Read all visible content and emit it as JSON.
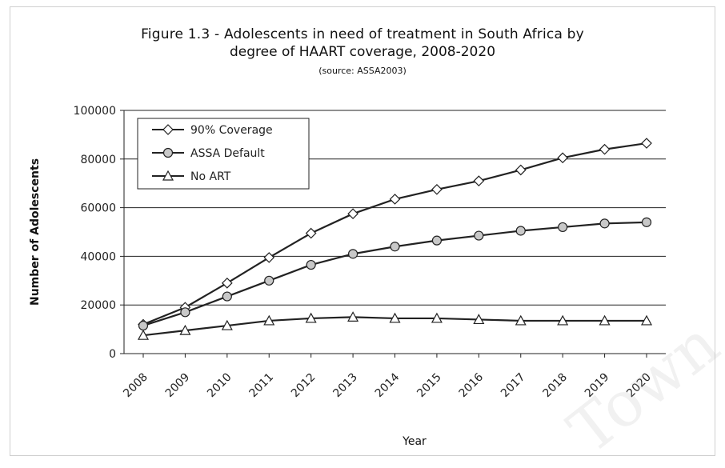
{
  "chart_data": {
    "type": "line",
    "title": "Figure 1.3 - Adolescents in need of treatment in South Africa by",
    "title_line2": "degree of HAART coverage, 2008-2020",
    "subtitle": "(source: ASSA2003)",
    "xlabel": "Year",
    "ylabel": "Number of Adolescents",
    "x": [
      "2008",
      "2009",
      "2010",
      "2011",
      "2012",
      "2013",
      "2014",
      "2015",
      "2016",
      "2017",
      "2018",
      "2019",
      "2020"
    ],
    "ylim": [
      0,
      100000
    ],
    "yticks": [
      0,
      20000,
      40000,
      60000,
      80000,
      100000
    ],
    "ytick_labels": [
      "0",
      "20000",
      "40000",
      "60000",
      "80000",
      "100000"
    ],
    "grid": true,
    "legend_position": "top-left",
    "series": [
      {
        "name": "90% Coverage",
        "marker": "diamond",
        "values": [
          12000,
          19000,
          29000,
          39500,
          49500,
          57500,
          63500,
          67500,
          71000,
          75500,
          80500,
          84000,
          86500
        ]
      },
      {
        "name": "ASSA Default",
        "marker": "circle",
        "values": [
          11500,
          17000,
          23500,
          30000,
          36500,
          41000,
          44000,
          46500,
          48500,
          50500,
          52000,
          53500,
          54000
        ]
      },
      {
        "name": "No ART",
        "marker": "triangle",
        "values": [
          7500,
          9500,
          11500,
          13500,
          14500,
          15000,
          14500,
          14500,
          14000,
          13500,
          13500,
          13500,
          13500
        ]
      }
    ]
  },
  "watermark": "Town"
}
